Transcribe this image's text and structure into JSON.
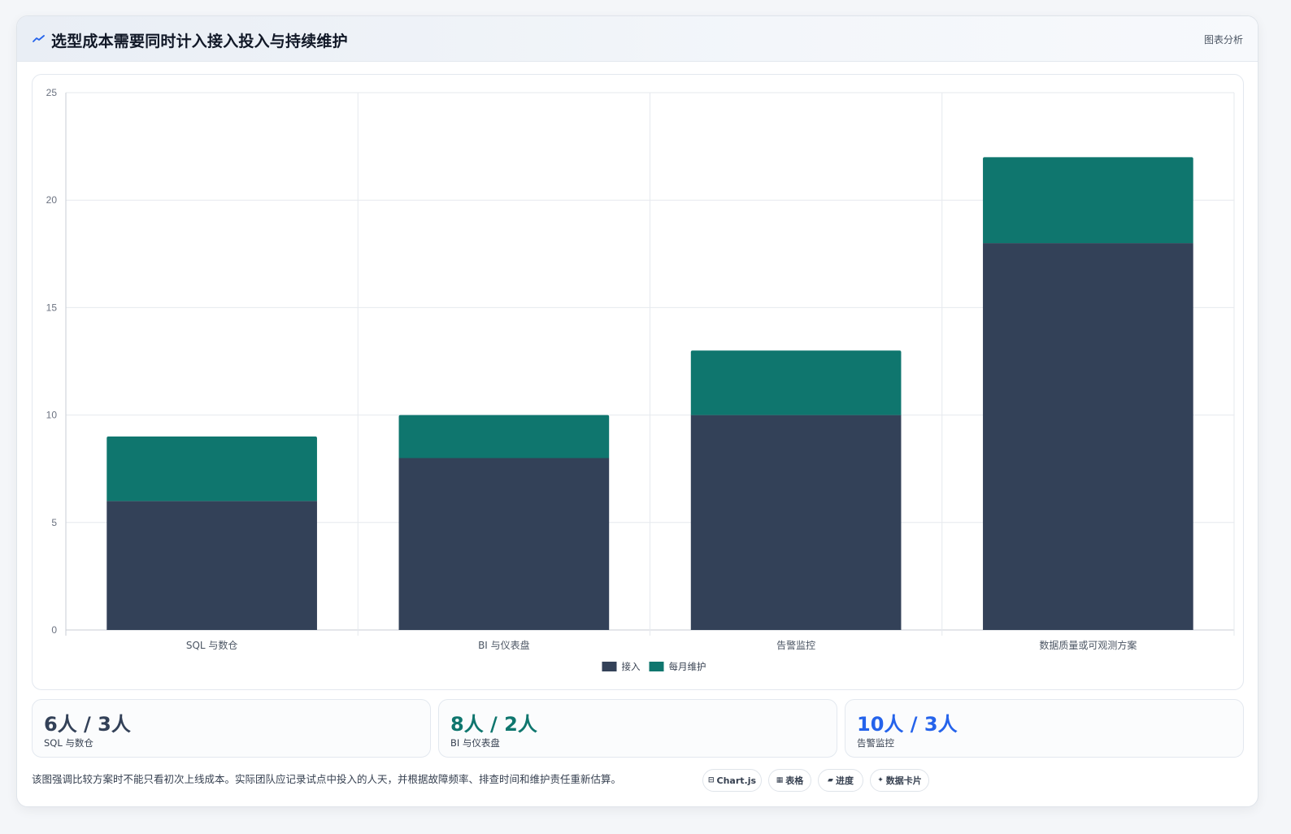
{
  "header": {
    "title": "选型成本需要同时计入接入投入与持续维护",
    "icon": "trend-line-icon",
    "action_label": "图表分析"
  },
  "chart_data": {
    "type": "bar",
    "stacked": true,
    "categories": [
      "SQL 与数仓",
      "BI 与仪表盘",
      "告警监控",
      "数据质量或可观测方案"
    ],
    "series": [
      {
        "name": "接入",
        "values": [
          6,
          8,
          10,
          18
        ],
        "color": "#334158"
      },
      {
        "name": "每月维护",
        "values": [
          3,
          2,
          3,
          4
        ],
        "color": "#0f766e"
      }
    ],
    "ylim": [
      0,
      25
    ],
    "yticks": [
      0,
      5,
      10,
      15,
      20,
      25
    ],
    "grid": true,
    "legend": "bottom-center",
    "xlabel": "",
    "ylabel": ""
  },
  "stats": [
    {
      "value": "6人 / 3人",
      "label": "SQL 与数仓",
      "color": "#334158"
    },
    {
      "value": "8人 / 2人",
      "label": "BI 与仪表盘",
      "color": "#0f766e"
    },
    {
      "value": "10人 / 3人",
      "label": "告警监控",
      "color": "#2563eb"
    }
  ],
  "footnote": "该图强调比较方案时不能只看初次上线成本。实际团队应记录试点中投入的人天，并根据故障频率、排查时间和维护责任重新估算。",
  "chips": [
    {
      "icon": "⊟",
      "icon_name": "chart-icon",
      "label": "Chart.js"
    },
    {
      "icon": "▦",
      "icon_name": "table-icon",
      "label": "表格"
    },
    {
      "icon": "▰",
      "icon_name": "progress-icon",
      "label": "进度"
    },
    {
      "icon": "✦",
      "icon_name": "sparkle-icon",
      "label": "数据卡片"
    }
  ]
}
